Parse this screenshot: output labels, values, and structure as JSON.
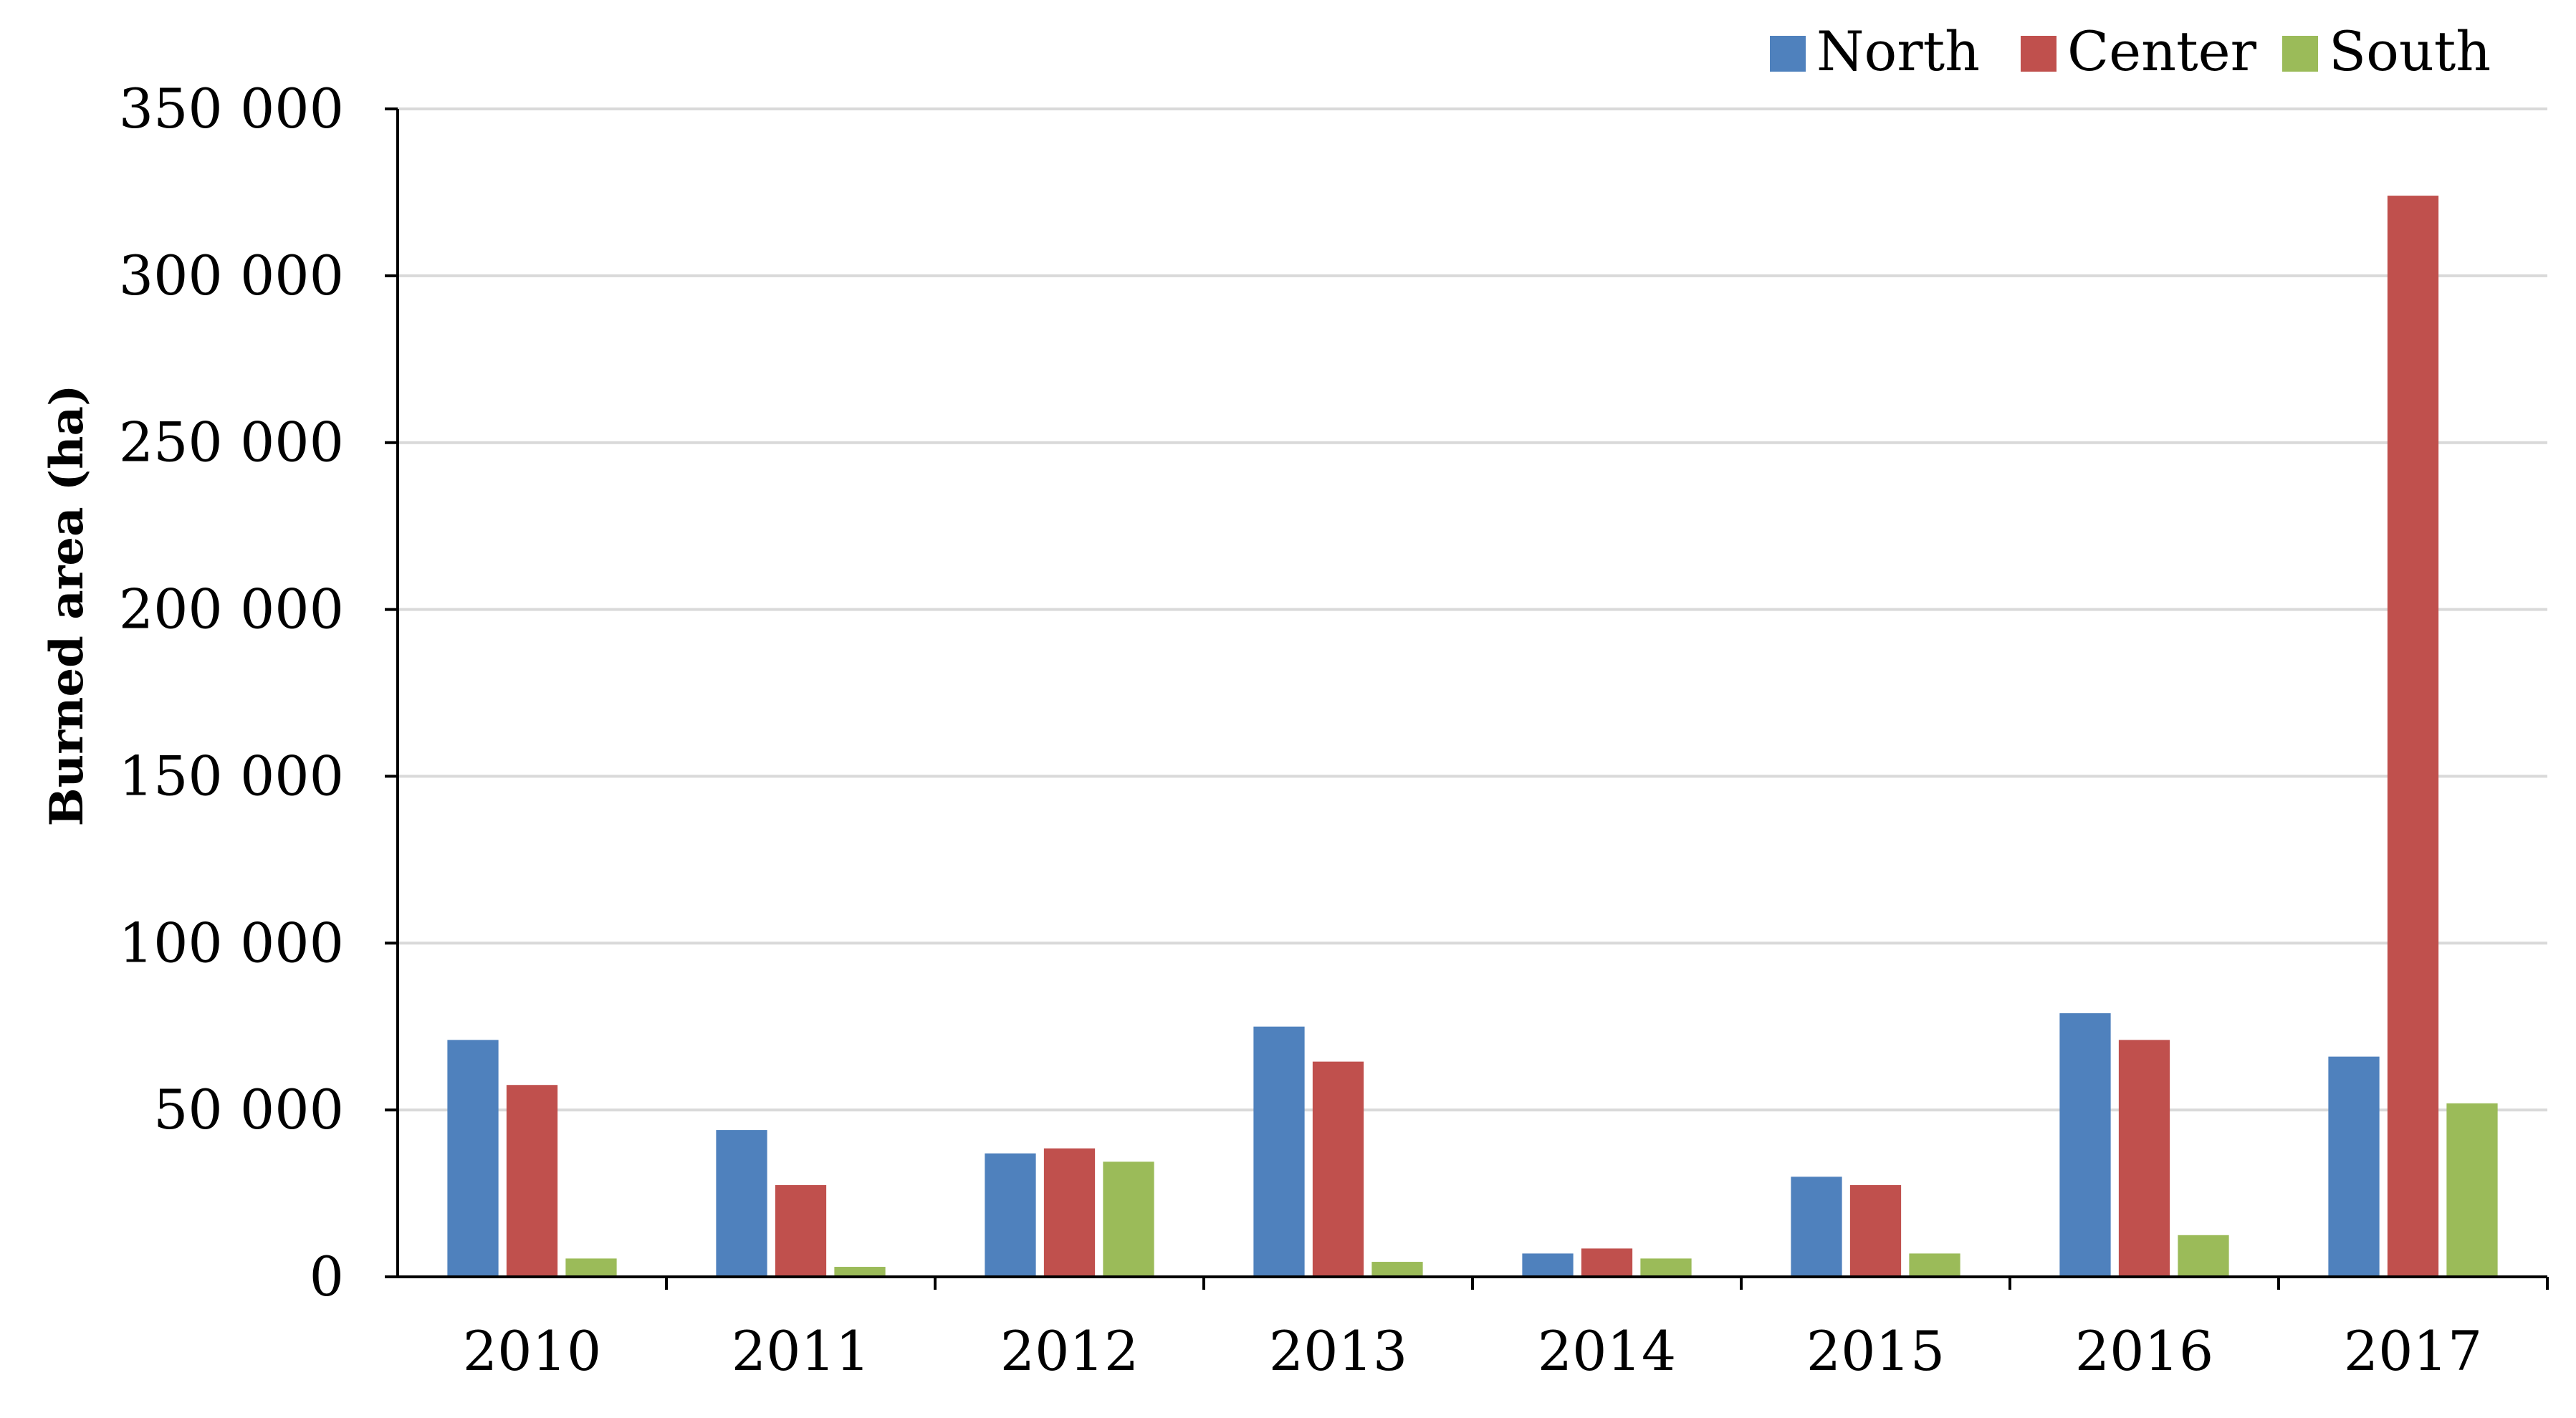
{
  "chart_data": {
    "type": "bar",
    "title": "",
    "xlabel": "",
    "ylabel": "Burned area (ha)",
    "ylim": [
      0,
      350000
    ],
    "yticks": [
      0,
      50000,
      100000,
      150000,
      200000,
      250000,
      300000,
      350000
    ],
    "ytick_labels": [
      "0",
      "50 000",
      "100 000",
      "150 000",
      "200 000",
      "250 000",
      "300 000",
      "350 000"
    ],
    "grid": "horizontal",
    "legend": "top-right",
    "categories": [
      "2010",
      "2011",
      "2012",
      "2013",
      "2014",
      "2015",
      "2016",
      "2017"
    ],
    "series": [
      {
        "name": "North",
        "color": "#4F81BD",
        "values": [
          71000,
          44000,
          37000,
          75000,
          7000,
          30000,
          79000,
          66000
        ]
      },
      {
        "name": "Center",
        "color": "#C0504D",
        "values": [
          57500,
          27500,
          38500,
          64500,
          8500,
          27500,
          71000,
          324000
        ]
      },
      {
        "name": "South",
        "color": "#9BBB59",
        "values": [
          5500,
          3000,
          34500,
          4500,
          5500,
          7000,
          12500,
          52000
        ]
      }
    ]
  }
}
